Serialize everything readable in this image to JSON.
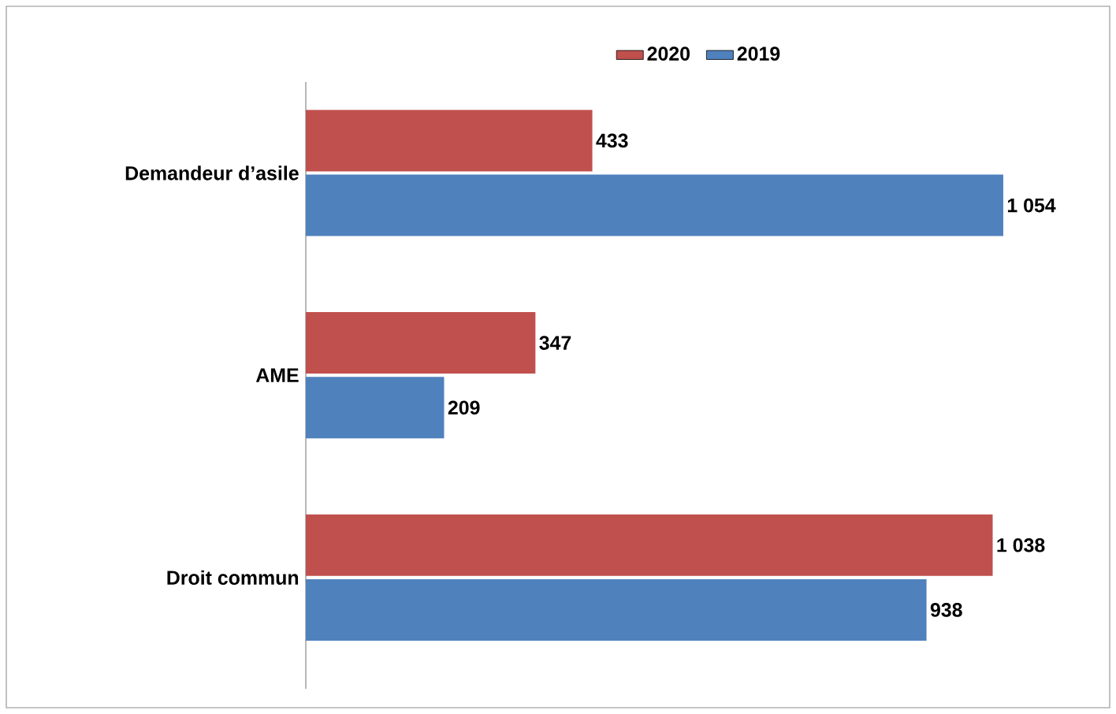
{
  "chart_data": {
    "type": "bar",
    "orientation": "horizontal",
    "data_labels": true,
    "legend": "top",
    "categories": [
      "Demandeur d’asile",
      "AME",
      "Droit commun"
    ],
    "series": [
      {
        "name": "2020",
        "color": "#c0504d",
        "values": [
          433,
          347,
          1038
        ],
        "value_labels": [
          "433",
          "347",
          "1 038"
        ]
      },
      {
        "name": "2019",
        "color": "#4f81bd",
        "values": [
          1054,
          209,
          938
        ],
        "value_labels": [
          "1 054",
          "209",
          "938"
        ]
      }
    ]
  }
}
